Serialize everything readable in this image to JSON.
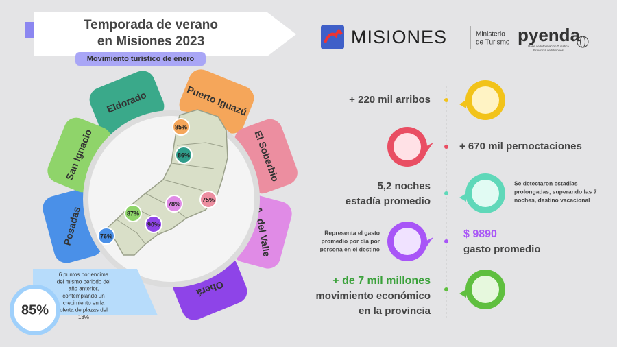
{
  "header": {
    "title_lines": [
      "Temporada de verano",
      "en Misiones 2023"
    ],
    "subtitle": "Movimiento turístico de enero"
  },
  "logos": {
    "misiones": "MISIONES",
    "ministry_lines": [
      "Ministerio",
      "de Turismo"
    ],
    "pyenda": "pyenda",
    "pyenda_caption_lines": [
      "Base de Información Turística",
      "Provincia de Misiones"
    ]
  },
  "regions": [
    {
      "name": "Eldorado",
      "occupancy": "86%"
    },
    {
      "name": "Puerto Iguazú",
      "occupancy": "85%"
    },
    {
      "name": "El Soberbio",
      "occupancy": "75%"
    },
    {
      "name": "A. del Valle",
      "occupancy": "78%"
    },
    {
      "name": "Oberá",
      "occupancy": "90%"
    },
    {
      "name": "Posadas",
      "occupancy": "76%"
    },
    {
      "name": "San Ignacio",
      "occupancy": "87%"
    }
  ],
  "callout": {
    "value": "85%",
    "text_lines": [
      "6 puntos por encima",
      "del mismo periodo del",
      "año anterior,",
      "contemplando un",
      "crecimiento en la",
      "oferta de plazas del",
      "13%"
    ]
  },
  "stats": {
    "arrivals": "+ 220 mil arribos",
    "overnights": "+ 670 mil pernoctaciones",
    "stay_lines": [
      "5,2 noches",
      "estadía promedio"
    ],
    "stay_note_lines": [
      "Se detectaron estadías",
      "prolongadas, superando las 7",
      "noches, destino vacacional"
    ],
    "spend_note_lines": [
      "Representa el gasto",
      "promedio por día por",
      "persona en el destino"
    ],
    "spend_value": "$ 9890",
    "spend_label": "gasto promedio",
    "economy_lines": [
      "+ de 7 mil millones",
      "movimiento económico",
      "en la provincia"
    ]
  }
}
